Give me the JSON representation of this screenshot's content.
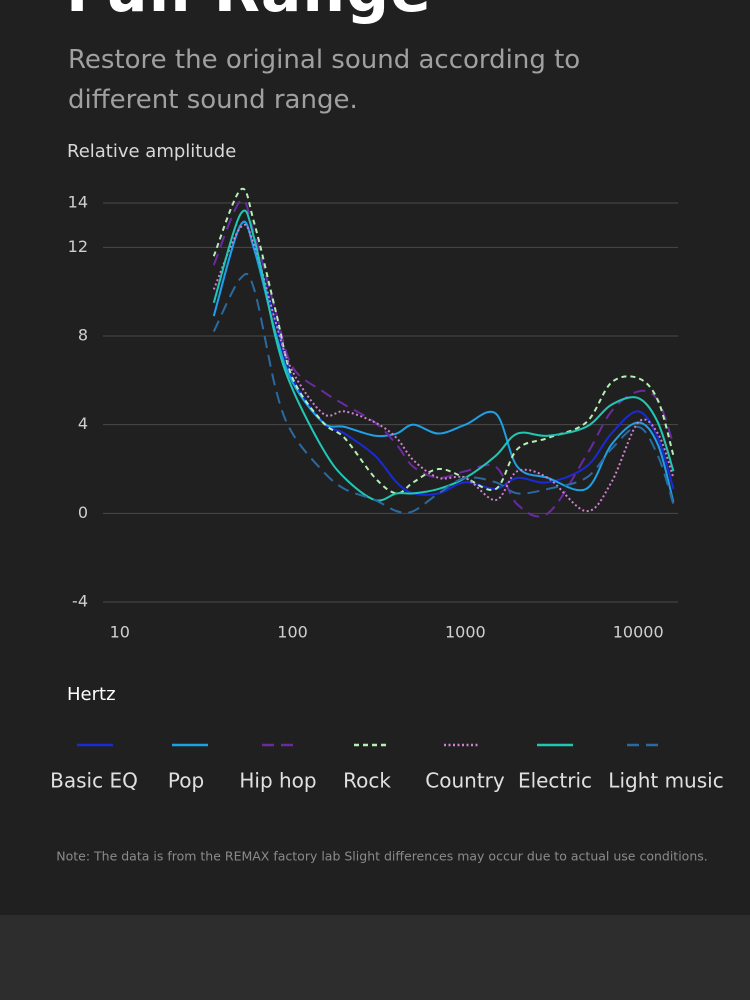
{
  "chart_data": {
    "type": "line",
    "title": "Full Range",
    "subtitle": "Restore the original sound according to different sound range.",
    "y_label": "Relative amplitude",
    "x_label": "Hertz",
    "note": "Note: The data is from the REMAX factory lab Slight differences may occur due to actual use conditions.",
    "xscale": "log",
    "xlim": [
      8,
      17000
    ],
    "xticks": [
      10,
      100,
      1000,
      10000
    ],
    "ylim": [
      -4,
      14
    ],
    "yticks": [
      -4,
      0,
      4,
      8,
      12,
      14
    ],
    "grid": true,
    "x": [
      35,
      50,
      60,
      80,
      100,
      150,
      200,
      300,
      400,
      500,
      700,
      1000,
      1500,
      2000,
      3000,
      5000,
      7000,
      10000,
      13000,
      16000
    ],
    "series": [
      {
        "name": "Basic EQ",
        "color": "#1a2bd6",
        "line_style": "solid",
        "values": [
          8.9,
          13,
          12,
          8.6,
          6.1,
          4.1,
          3.6,
          2.6,
          1.4,
          0.9,
          0.9,
          1.4,
          1.1,
          1.6,
          1.4,
          2.1,
          3.6,
          4.6,
          3.4,
          1.1
        ]
      },
      {
        "name": "Pop",
        "color": "#1ea0e6",
        "line_style": "solid",
        "values": [
          8.9,
          13,
          11.9,
          8.1,
          5.9,
          4.1,
          3.9,
          3.5,
          3.6,
          4,
          3.6,
          4,
          4.5,
          2.1,
          1.6,
          1.1,
          3.1,
          4.1,
          3.1,
          0.5
        ]
      },
      {
        "name": "Hip hop",
        "color": "#6a2aa0",
        "line_style": "dashed",
        "values": [
          11.2,
          14.1,
          12.6,
          9.1,
          6.6,
          5.5,
          4.9,
          4.1,
          3.1,
          2.1,
          1.6,
          1.9,
          2.1,
          0.4,
          0,
          2.6,
          4.6,
          5.5,
          5.1,
          3.1
        ]
      },
      {
        "name": "Rock",
        "color": "#b4f0b4",
        "line_style": "short-dashed",
        "values": [
          11.6,
          14.6,
          13.1,
          9.1,
          6.1,
          4.1,
          3.4,
          1.6,
          0.9,
          1.4,
          2,
          1.6,
          1.1,
          2.9,
          3.4,
          4.1,
          5.9,
          6.1,
          5.1,
          2.6
        ]
      },
      {
        "name": "Country",
        "color": "#d080d0",
        "line_style": "dotted",
        "values": [
          10.1,
          12.9,
          12.1,
          8.6,
          6.4,
          4.5,
          4.6,
          4.1,
          3.4,
          2.4,
          1.6,
          1.6,
          0.6,
          1.9,
          1.6,
          0.1,
          1.4,
          4.1,
          3.6,
          1.6
        ]
      },
      {
        "name": "Electric",
        "color": "#20c8b4",
        "line_style": "solid",
        "values": [
          9.5,
          13.5,
          12.4,
          7.9,
          5.6,
          2.9,
          1.6,
          0.6,
          0.9,
          0.9,
          1.1,
          1.6,
          2.6,
          3.6,
          3.5,
          3.9,
          4.9,
          5.2,
          4.1,
          1.9
        ]
      },
      {
        "name": "Light music",
        "color": "#2a6aa0",
        "line_style": "dashed",
        "values": [
          8.2,
          10.6,
          10.1,
          5.6,
          3.6,
          1.9,
          1.1,
          0.6,
          0.1,
          0.1,
          0.9,
          1.6,
          1.4,
          0.9,
          1.1,
          1.6,
          2.9,
          3.9,
          2.6,
          0.4
        ]
      }
    ]
  }
}
